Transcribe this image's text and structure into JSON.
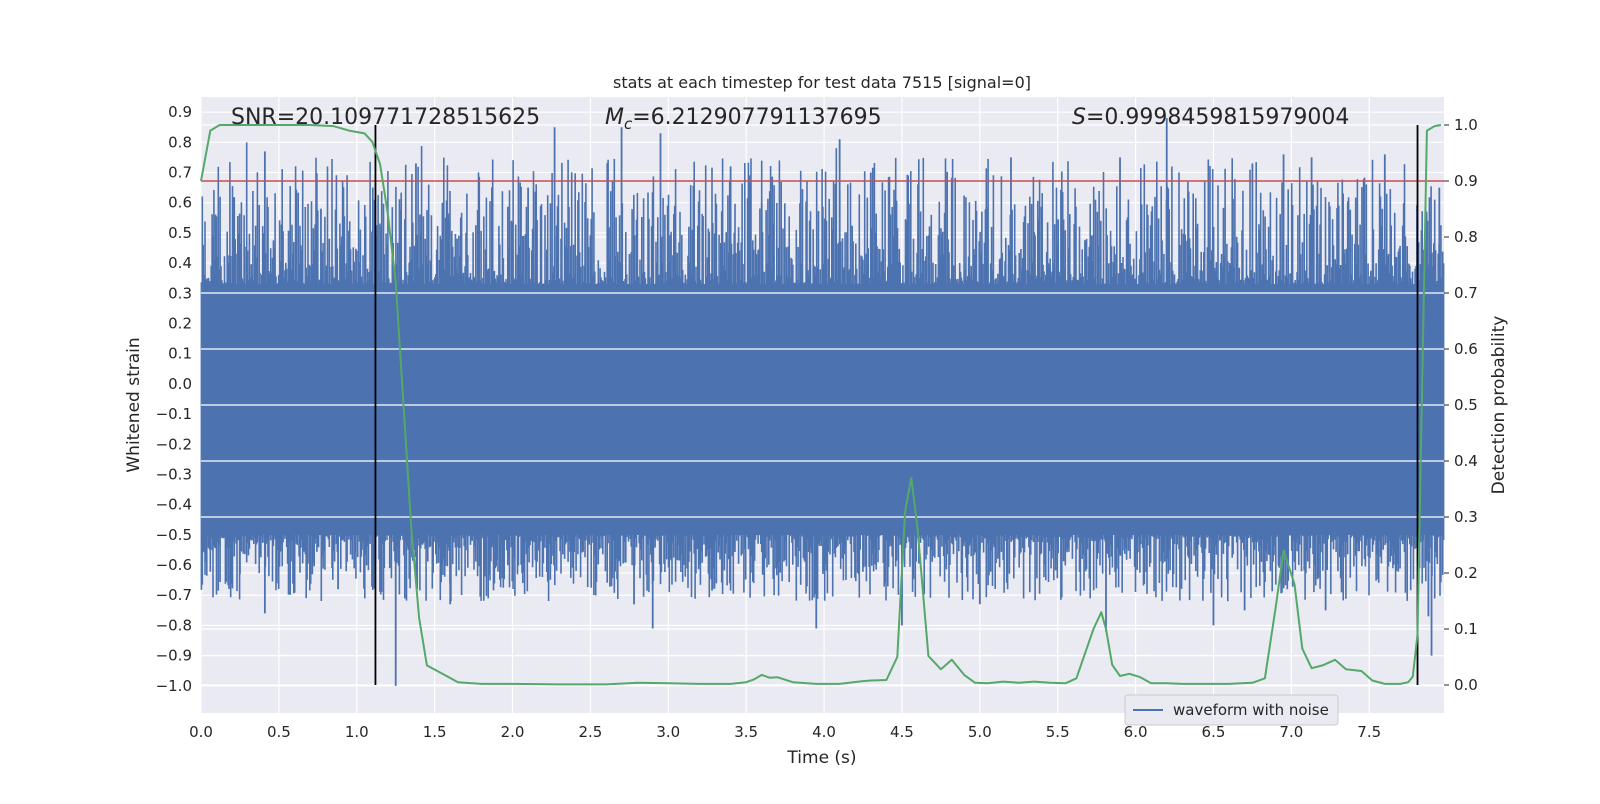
{
  "chart_data": {
    "type": "line",
    "title": "stats at each timestep for test data 7515 [signal=0]",
    "xlabel": "Time (s)",
    "ylabel_left": "Whitened strain",
    "ylabel_right": "Detection probability",
    "xlim": [
      0.0,
      7.98
    ],
    "ylim_left": [
      -1.09,
      0.95
    ],
    "ylim_right": [
      -0.05,
      1.05
    ],
    "x_ticks": [
      "0.0",
      "0.5",
      "1.0",
      "1.5",
      "2.0",
      "2.5",
      "3.0",
      "3.5",
      "4.0",
      "4.5",
      "5.0",
      "5.5",
      "6.0",
      "6.5",
      "7.0",
      "7.5"
    ],
    "y_ticks_left": [
      "0.9",
      "0.8",
      "0.7",
      "0.6",
      "0.5",
      "0.4",
      "0.3",
      "0.2",
      "0.1",
      "0.0",
      "−0.1",
      "−0.2",
      "−0.3",
      "−0.4",
      "−0.5",
      "−0.6",
      "−0.7",
      "−0.8",
      "−0.9",
      "−1.0"
    ],
    "y_ticks_right": [
      "1.0",
      "0.9",
      "0.8",
      "0.7",
      "0.6",
      "0.5",
      "0.4",
      "0.3",
      "0.2",
      "0.1",
      "0.0"
    ],
    "annotations": {
      "snr": "SNR=20.109771728515625",
      "mc_symbol": "M",
      "mc_sub": "c",
      "mc_value": "=6.212907791137695",
      "s_symbol": "S",
      "s_value": "=0.9998459815979004"
    },
    "threshold_prob": 0.9,
    "vlines_x": [
      1.12,
      7.81
    ],
    "grid": true,
    "legend": {
      "position": "lower-right",
      "label": "waveform with noise"
    },
    "colors": {
      "waveform": "#4c72b0",
      "probability": "#55a868",
      "threshold": "#c44e52",
      "vline": "#000000",
      "background": "#eaeaf2",
      "grid": "#ffffff"
    },
    "series": [
      {
        "name": "waveform with noise",
        "axis": "left",
        "kind": "strain",
        "core_range": [
          -0.5,
          0.33
        ],
        "seed": 7515,
        "spikes": [
          {
            "x": 0.41,
            "y": 0.77
          },
          {
            "x": 0.41,
            "y": -0.76
          },
          {
            "x": 0.25,
            "y": -0.63
          },
          {
            "x": 0.88,
            "y": -0.68
          },
          {
            "x": 1.1,
            "y": -0.6
          },
          {
            "x": 1.25,
            "y": -1.0
          },
          {
            "x": 1.38,
            "y": 0.73
          },
          {
            "x": 1.37,
            "y": -0.55
          },
          {
            "x": 1.6,
            "y": -0.73
          },
          {
            "x": 1.55,
            "y": 0.6
          },
          {
            "x": 2.1,
            "y": 0.65
          },
          {
            "x": 2.27,
            "y": 0.85
          },
          {
            "x": 2.7,
            "y": 0.85
          },
          {
            "x": 2.95,
            "y": 0.83
          },
          {
            "x": 2.9,
            "y": -0.81
          },
          {
            "x": 2.78,
            "y": -0.73
          },
          {
            "x": 3.4,
            "y": 0.72
          },
          {
            "x": 4.1,
            "y": 0.81
          },
          {
            "x": 3.95,
            "y": -0.81
          },
          {
            "x": 4.3,
            "y": 0.7
          },
          {
            "x": 4.5,
            "y": -0.8
          },
          {
            "x": 5.2,
            "y": 0.75
          },
          {
            "x": 5.9,
            "y": 0.75
          },
          {
            "x": 6.2,
            "y": 0.88
          },
          {
            "x": 5.81,
            "y": -0.82
          },
          {
            "x": 6.5,
            "y": -0.8
          },
          {
            "x": 6.75,
            "y": 0.73
          },
          {
            "x": 6.7,
            "y": -0.75
          },
          {
            "x": 6.95,
            "y": 0.76
          },
          {
            "x": 7.13,
            "y": 0.75
          },
          {
            "x": 7.22,
            "y": -0.75
          },
          {
            "x": 7.6,
            "y": 0.76
          },
          {
            "x": 7.9,
            "y": -0.9
          },
          {
            "x": 7.88,
            "y": -0.77
          },
          {
            "x": 7.95,
            "y": 0.65
          },
          {
            "x": 5.0,
            "y": -0.73
          },
          {
            "x": 3.6,
            "y": 0.6
          },
          {
            "x": 0.77,
            "y": 0.58
          }
        ]
      },
      {
        "name": "detection probability",
        "axis": "right",
        "kind": "line",
        "x": [
          0.0,
          0.06,
          0.12,
          0.3,
          0.5,
          0.7,
          0.85,
          0.95,
          1.05,
          1.1,
          1.15,
          1.2,
          1.25,
          1.3,
          1.35,
          1.4,
          1.45,
          1.55,
          1.65,
          1.8,
          2.0,
          2.3,
          2.6,
          2.8,
          3.0,
          3.2,
          3.4,
          3.5,
          3.55,
          3.6,
          3.65,
          3.7,
          3.8,
          3.95,
          4.1,
          4.25,
          4.3,
          4.4,
          4.47,
          4.52,
          4.56,
          4.6,
          4.67,
          4.75,
          4.82,
          4.9,
          4.97,
          5.05,
          5.15,
          5.25,
          5.35,
          5.45,
          5.55,
          5.62,
          5.68,
          5.73,
          5.78,
          5.81,
          5.85,
          5.9,
          5.96,
          6.03,
          6.1,
          6.2,
          6.3,
          6.4,
          6.6,
          6.75,
          6.83,
          6.9,
          6.95,
          7.02,
          7.07,
          7.13,
          7.2,
          7.28,
          7.35,
          7.45,
          7.52,
          7.6,
          7.7,
          7.75,
          7.78,
          7.81,
          7.84,
          7.87,
          7.92,
          7.96
        ],
        "values": [
          0.9,
          0.99,
          1.0,
          1.0,
          1.0,
          1.0,
          0.998,
          0.99,
          0.985,
          0.97,
          0.93,
          0.84,
          0.72,
          0.5,
          0.28,
          0.12,
          0.035,
          0.02,
          0.005,
          0.002,
          0.002,
          0.001,
          0.001,
          0.004,
          0.003,
          0.002,
          0.002,
          0.005,
          0.01,
          0.018,
          0.013,
          0.014,
          0.005,
          0.002,
          0.002,
          0.007,
          0.008,
          0.009,
          0.05,
          0.31,
          0.37,
          0.28,
          0.052,
          0.028,
          0.045,
          0.018,
          0.004,
          0.003,
          0.006,
          0.004,
          0.006,
          0.004,
          0.003,
          0.012,
          0.06,
          0.1,
          0.13,
          0.1,
          0.036,
          0.016,
          0.02,
          0.014,
          0.003,
          0.003,
          0.002,
          0.002,
          0.002,
          0.004,
          0.012,
          0.14,
          0.24,
          0.18,
          0.065,
          0.03,
          0.035,
          0.045,
          0.028,
          0.025,
          0.008,
          0.002,
          0.002,
          0.005,
          0.015,
          0.09,
          0.54,
          0.99,
          0.998,
          1.0
        ]
      }
    ]
  }
}
